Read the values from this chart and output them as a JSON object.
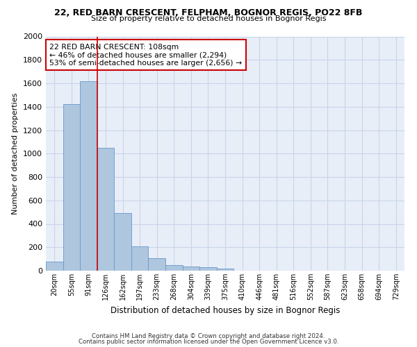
{
  "title1": "22, RED BARN CRESCENT, FELPHAM, BOGNOR REGIS, PO22 8FB",
  "title2": "Size of property relative to detached houses in Bognor Regis",
  "xlabel": "Distribution of detached houses by size in Bognor Regis",
  "ylabel": "Number of detached properties",
  "bin_labels": [
    "20sqm",
    "55sqm",
    "91sqm",
    "126sqm",
    "162sqm",
    "197sqm",
    "233sqm",
    "268sqm",
    "304sqm",
    "339sqm",
    "375sqm",
    "410sqm",
    "446sqm",
    "481sqm",
    "516sqm",
    "552sqm",
    "587sqm",
    "623sqm",
    "658sqm",
    "694sqm",
    "729sqm"
  ],
  "bar_values": [
    80,
    1420,
    1620,
    1050,
    490,
    205,
    105,
    50,
    38,
    28,
    18,
    0,
    0,
    0,
    0,
    0,
    0,
    0,
    0,
    0,
    0
  ],
  "bar_color": "#aec6de",
  "bar_edge_color": "#6699cc",
  "grid_color": "#c8d4e8",
  "background_color": "#e8eef8",
  "red_line_x": 2.5,
  "red_line_color": "#cc0000",
  "annotation_text": "22 RED BARN CRESCENT: 108sqm\n← 46% of detached houses are smaller (2,294)\n53% of semi-detached houses are larger (2,656) →",
  "annotation_box_color": "#cc0000",
  "ylim": [
    0,
    2000
  ],
  "yticks": [
    0,
    200,
    400,
    600,
    800,
    1000,
    1200,
    1400,
    1600,
    1800,
    2000
  ],
  "footer1": "Contains HM Land Registry data © Crown copyright and database right 2024.",
  "footer2": "Contains public sector information licensed under the Open Government Licence v3.0."
}
